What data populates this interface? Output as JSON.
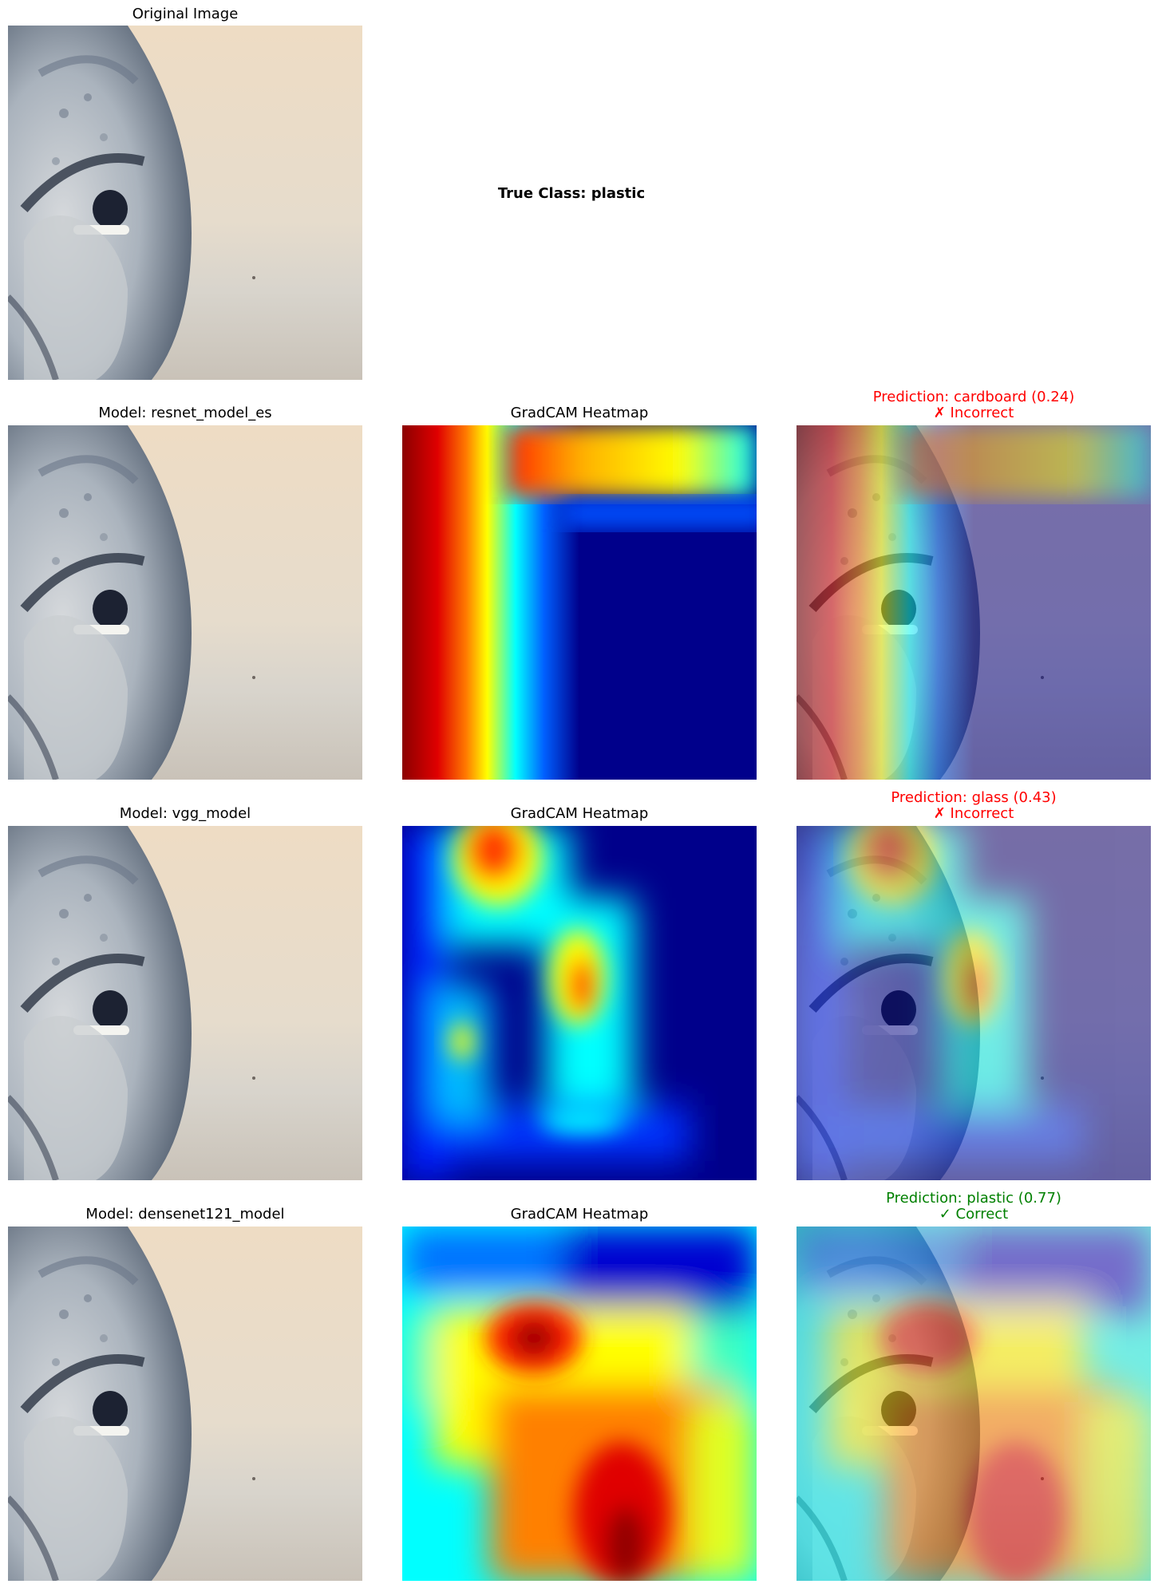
{
  "original": {
    "title": "Original Image"
  },
  "true_class": {
    "text": "True Class: plastic"
  },
  "rows": [
    {
      "model_title": "Model: resnet_model_es",
      "heatmap_title": "GradCAM Heatmap",
      "prediction": "Prediction: cardboard (0.24)",
      "verdict": "✗ Incorrect",
      "verdict_color": "#ff0000"
    },
    {
      "model_title": "Model: vgg_model",
      "heatmap_title": "GradCAM Heatmap",
      "prediction": "Prediction: glass (0.43)",
      "verdict": "✗ Incorrect",
      "verdict_color": "#ff0000"
    },
    {
      "model_title": "Model: densenet121_model",
      "heatmap_title": "GradCAM Heatmap",
      "prediction": "Prediction: plastic (0.77)",
      "verdict": "✓ Correct",
      "verdict_color": "#008000"
    }
  ],
  "colors": {
    "incorrect": "#ff0000",
    "correct": "#008000",
    "jet_low": "#00008b",
    "jet_high": "#8b0000"
  }
}
